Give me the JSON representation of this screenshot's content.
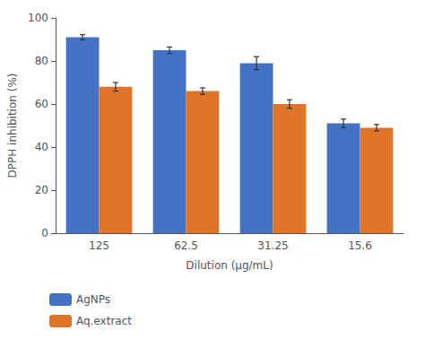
{
  "chart_data": {
    "type": "bar",
    "categories": [
      "125",
      "62.5",
      "31.25",
      "15.6"
    ],
    "series": [
      {
        "name": "AgNPs",
        "color": "#4472C4",
        "values": [
          91,
          85,
          79,
          51
        ],
        "errors": [
          1.2,
          1.5,
          3.0,
          2.0
        ]
      },
      {
        "name": "Aq.extract",
        "color": "#E07428",
        "values": [
          68,
          66,
          60,
          49
        ],
        "errors": [
          2.0,
          1.5,
          2.0,
          1.5
        ]
      }
    ],
    "xlabel": "Dilution (μg/mL)",
    "ylabel": "DPPH inhibition (%)",
    "ylim": [
      0,
      100
    ],
    "yticks": [
      0,
      20,
      40,
      60,
      80,
      100
    ],
    "grid": false,
    "legend": "lower left"
  }
}
